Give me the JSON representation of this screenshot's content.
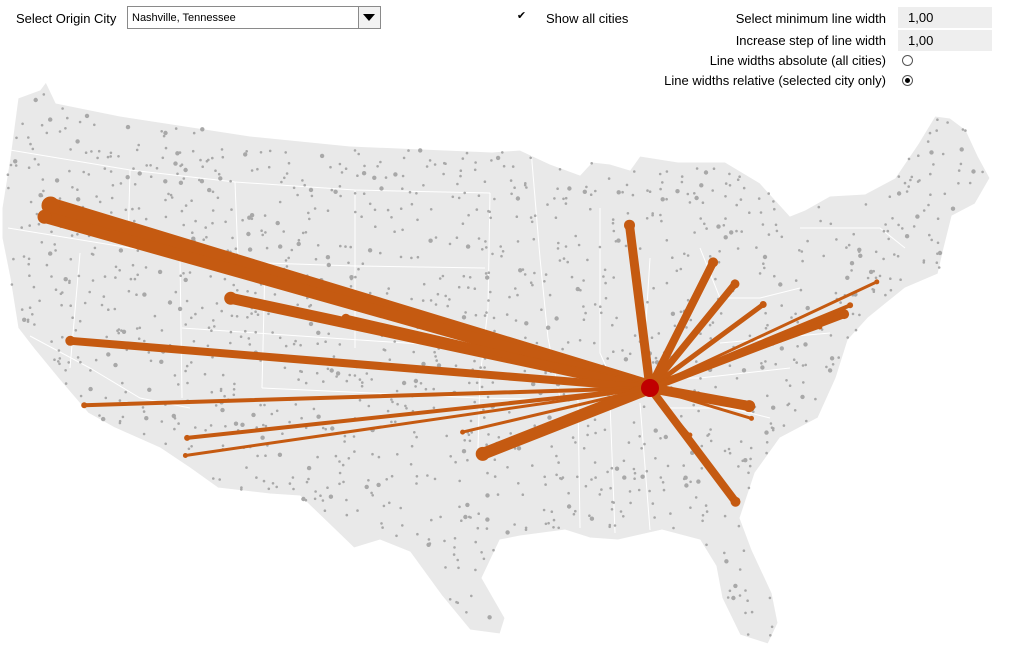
{
  "controls": {
    "origin_label": "Select Origin City",
    "origin_value": "Nashville, Tennessee",
    "show_all_label": "Show all cities",
    "show_all_checked": true,
    "min_width_label": "Select minimum line width",
    "min_width_value": "1,00",
    "step_label": "Increase step of line width",
    "step_value": "1,00",
    "absolute_label": "Line widths absolute (all cities)",
    "relative_label": "Line widths relative (selected city only)",
    "selected_mode": "relative"
  },
  "map": {
    "land_color": "#e9e9e9",
    "border_color": "#ffffff",
    "city_dot_color": "#a8a8a8",
    "route_color": "#c55a11",
    "origin_color": "#c00000",
    "origin": {
      "name": "Nashville, Tennessee",
      "lon": -86.78,
      "lat": 36.16
    },
    "routes": [
      {
        "lon": -122.68,
        "lat": 45.52,
        "w": 16
      },
      {
        "lon": -123.04,
        "lat": 44.94,
        "w": 12
      },
      {
        "lon": -111.89,
        "lat": 40.76,
        "w": 11
      },
      {
        "lon": -104.99,
        "lat": 39.74,
        "w": 7
      },
      {
        "lon": -121.49,
        "lat": 38.58,
        "w": 8
      },
      {
        "lon": -120.66,
        "lat": 35.28,
        "w": 4
      },
      {
        "lon": -114.5,
        "lat": 33.6,
        "w": 4
      },
      {
        "lon": -114.6,
        "lat": 32.7,
        "w": 3
      },
      {
        "lon": -96.8,
        "lat": 32.78,
        "w": 12
      },
      {
        "lon": -98.0,
        "lat": 33.9,
        "w": 3
      },
      {
        "lon": -88.01,
        "lat": 44.51,
        "w": 9
      },
      {
        "lon": -87.63,
        "lat": 41.88,
        "w": 2
      },
      {
        "lon": -83.0,
        "lat": 42.6,
        "w": 8
      },
      {
        "lon": -81.69,
        "lat": 41.5,
        "w": 7
      },
      {
        "lon": -80.0,
        "lat": 40.44,
        "w": 5
      },
      {
        "lon": -75.16,
        "lat": 39.95,
        "w": 8
      },
      {
        "lon": -73.2,
        "lat": 41.6,
        "w": 3
      },
      {
        "lon": -74.8,
        "lat": 40.4,
        "w": 4
      },
      {
        "lon": -76.61,
        "lat": 39.29,
        "w": 3
      },
      {
        "lon": -75.7,
        "lat": 39.74,
        "w": 3
      },
      {
        "lon": -80.84,
        "lat": 35.23,
        "w": 10
      },
      {
        "lon": -80.7,
        "lat": 34.6,
        "w": 3
      },
      {
        "lon": -81.66,
        "lat": 30.33,
        "w": 8
      },
      {
        "lon": -84.39,
        "lat": 33.75,
        "w": 2
      }
    ]
  }
}
